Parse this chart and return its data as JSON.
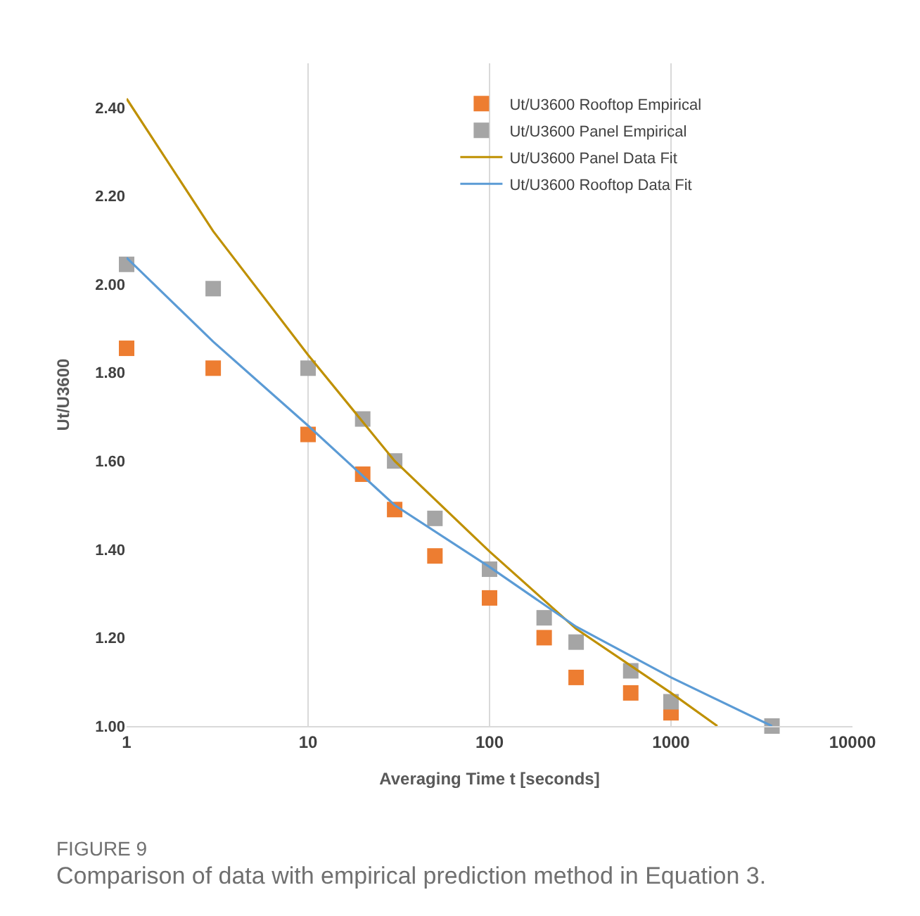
{
  "chart_data": {
    "type": "scatter",
    "xlabel": "Averaging Time t [seconds]",
    "ylabel": "Ut/U3600",
    "series": [
      {
        "name": "Ut/U3600 Rooftop Empirical",
        "marker": "square",
        "color": "#ed7d31",
        "x": [
          1,
          3,
          10,
          20,
          30,
          50,
          100,
          200,
          300,
          600,
          1000
        ],
        "values": [
          1.855,
          1.81,
          1.66,
          1.57,
          1.49,
          1.385,
          1.29,
          1.2,
          1.11,
          1.075,
          1.03
        ]
      },
      {
        "name": "Ut/U3600 Panel Empirical",
        "marker": "square",
        "color": "#a5a5a5",
        "x": [
          1,
          3,
          10,
          20,
          30,
          50,
          100,
          200,
          300,
          600,
          1000,
          3600
        ],
        "values": [
          2.045,
          1.99,
          1.81,
          1.695,
          1.6,
          1.47,
          1.355,
          1.245,
          1.19,
          1.125,
          1.055,
          1.0
        ]
      },
      {
        "name": "Ut/U3600 Panel Data Fit",
        "type": "line",
        "marker": "none",
        "color": "#bf9000",
        "x": [
          1,
          3,
          10,
          30,
          100,
          300,
          1000,
          1800
        ],
        "values": [
          2.42,
          2.12,
          1.84,
          1.6,
          1.395,
          1.22,
          1.075,
          1.0
        ]
      },
      {
        "name": "Ut/U3600 Rooftop Data Fit",
        "type": "line",
        "marker": "none",
        "color": "#5b9bd5",
        "x": [
          1,
          3,
          10,
          30,
          100,
          300,
          1000,
          3600
        ],
        "values": [
          2.06,
          1.87,
          1.68,
          1.5,
          1.36,
          1.225,
          1.11,
          1.0
        ]
      }
    ],
    "log": "x",
    "xlim": [
      1,
      10000
    ],
    "xticks": [
      1,
      10,
      100,
      1000,
      10000
    ],
    "ylim": [
      1.0,
      2.5
    ],
    "yticks": [
      {
        "value": 1.0,
        "label": "1.00"
      },
      {
        "value": 1.2,
        "label": "1.20"
      },
      {
        "value": 1.4,
        "label": "1.40"
      },
      {
        "value": 1.6,
        "label": "1.60"
      },
      {
        "value": 1.8,
        "label": "1.80"
      },
      {
        "value": 2.0,
        "label": "2.00"
      },
      {
        "value": 2.2,
        "label": "2.20"
      },
      {
        "value": 2.4,
        "label": "2.40"
      }
    ],
    "grid": "x",
    "legend": "top right",
    "annotations": [
      "FIGURE 9",
      "Comparison of data with empirical prediction method in Equation 3."
    ]
  }
}
